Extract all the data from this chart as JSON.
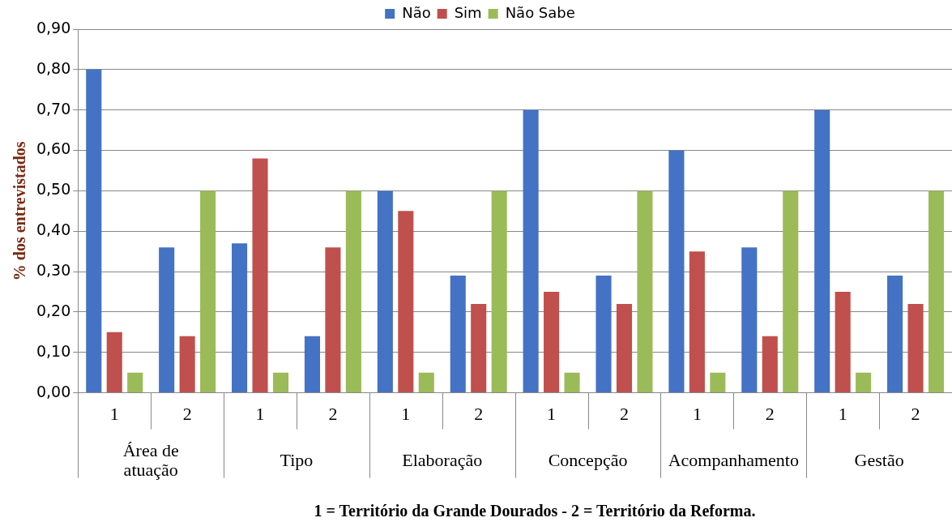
{
  "chart_data": {
    "type": "bar",
    "ylabel": "% dos entrevistados",
    "categories": [
      "1",
      "2",
      "1",
      "2",
      "1",
      "2",
      "1",
      "2",
      "1",
      "2",
      "1",
      "2"
    ],
    "series": [
      {
        "name": "Não",
        "color": "#4472c4",
        "values": [
          0.8,
          0.36,
          0.37,
          0.14,
          0.5,
          0.29,
          0.7,
          0.29,
          0.6,
          0.36,
          0.7,
          0.29
        ]
      },
      {
        "name": "Sim",
        "color": "#c0504d",
        "values": [
          0.15,
          0.14,
          0.58,
          0.36,
          0.45,
          0.22,
          0.25,
          0.22,
          0.35,
          0.14,
          0.25,
          0.22
        ]
      },
      {
        "name": "Não Sabe",
        "color": "#9bbb59",
        "values": [
          0.05,
          0.5,
          0.05,
          0.5,
          0.05,
          0.5,
          0.05,
          0.5,
          0.05,
          0.5,
          0.05,
          0.5
        ]
      }
    ],
    "ylim": [
      0,
      0.9
    ],
    "yticks": [
      {
        "value": 0,
        "label": "0,00"
      },
      {
        "value": 0.1,
        "label": "0,10"
      },
      {
        "value": 0.2,
        "label": "0,20"
      },
      {
        "value": 0.3,
        "label": "0,30"
      },
      {
        "value": 0.4,
        "label": "0,40"
      },
      {
        "value": 0.5,
        "label": "0,50"
      },
      {
        "value": 0.6,
        "label": "0,60"
      },
      {
        "value": 0.7,
        "label": "0,70"
      },
      {
        "value": 0.8,
        "label": "0,80"
      },
      {
        "value": 0.9,
        "label": "0,90"
      }
    ],
    "grid": "y",
    "legend": "top",
    "annotations": [
      "Área de\natuação",
      "Tipo",
      "Elaboração",
      "Concepção",
      "Acompanhamento",
      "Gestão",
      "1 = Território da Grande Dourados - 2 = Território da Reforma."
    ]
  }
}
